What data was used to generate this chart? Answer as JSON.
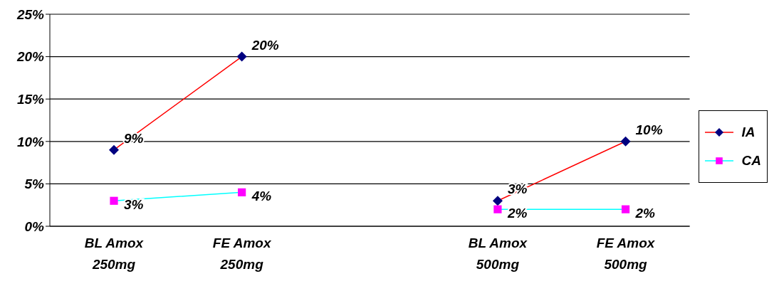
{
  "chart_data": {
    "type": "line",
    "categories": [
      "BL Amox 250mg",
      "FE Amox 250mg",
      null,
      "BL Amox 500mg",
      "FE Amox 500mg"
    ],
    "series": [
      {
        "name": "IA",
        "color": "#ff0000",
        "colors": [
          "#000080",
          "#000080",
          null,
          "#000080",
          "#000080"
        ],
        "marker": "diamond",
        "values": [
          9,
          20,
          null,
          3,
          10
        ],
        "value_labels": [
          "9%",
          "20%",
          null,
          "3%",
          "10%"
        ]
      },
      {
        "name": "CA",
        "color": "#00ffff",
        "colors": [
          "#ff00ff",
          "#ff00ff",
          null,
          "#ff00ff",
          "#ff00ff"
        ],
        "marker": "square",
        "values": [
          3,
          4,
          null,
          2,
          2
        ],
        "value_labels": [
          "3%",
          "4%",
          null,
          "2%",
          "2%"
        ]
      }
    ],
    "ylim": [
      0,
      25
    ],
    "yticks": [
      {
        "value": 0,
        "label": "0%"
      },
      {
        "value": 5,
        "label": "5%"
      },
      {
        "value": 10,
        "label": "10%"
      },
      {
        "value": 15,
        "label": "15%"
      },
      {
        "value": 20,
        "label": "20%"
      },
      {
        "value": 25,
        "label": "25%"
      }
    ],
    "grid": "y",
    "legend": "right"
  }
}
